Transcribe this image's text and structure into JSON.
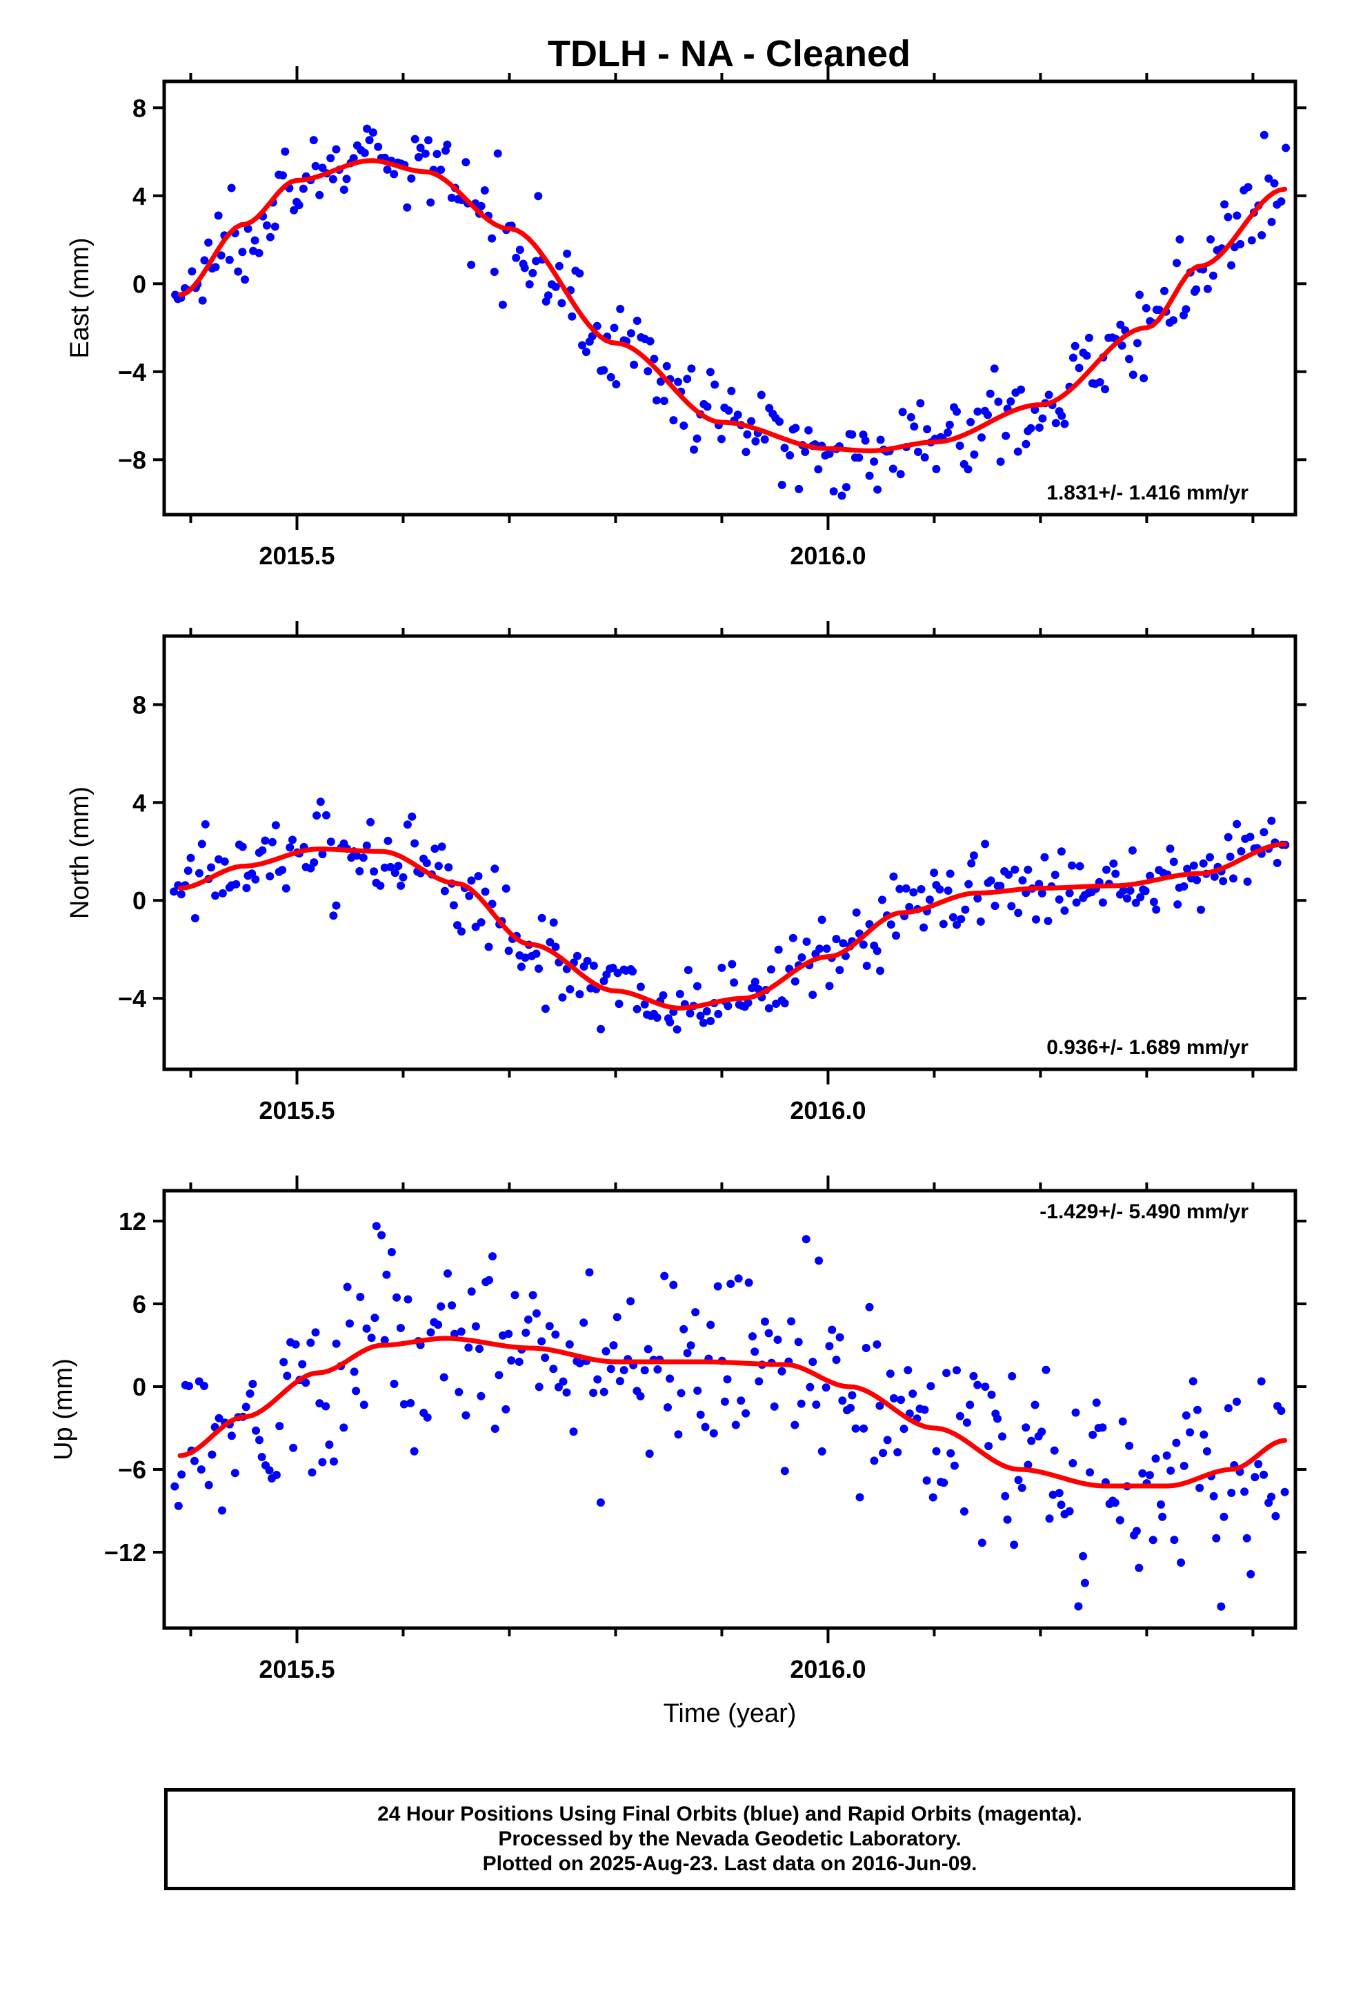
{
  "title": "TDLH  - NA - Cleaned",
  "footer": {
    "line1": "24 Hour Positions Using Final Orbits (blue) and Rapid Orbits (magenta).",
    "line2": "Processed by the Nevada Geodetic Laboratory.",
    "line3": "Plotted on 2025-Aug-23. Last data on 2016-Jun-09."
  },
  "colors": {
    "points": "#0000ff",
    "fit": "#ff0000",
    "frame": "#000000"
  },
  "chart_data": [
    {
      "type": "scatter",
      "ylabel": "East (mm)",
      "xlabel": "",
      "rate": "1.831+/- 1.416 mm/yr",
      "xlim": [
        2015.375,
        2016.44
      ],
      "ylim": [
        -10.5,
        9.2
      ],
      "xticks_major": [
        2015.5,
        2016.0
      ],
      "xtick_labels": [
        "2015.5",
        "2016.0"
      ],
      "xticks_minor": [
        2015.4,
        2015.6,
        2015.7,
        2015.8,
        2015.9,
        2016.1,
        2016.2,
        2016.3,
        2016.4
      ],
      "yticks": [
        -8,
        -4,
        0,
        4,
        8
      ],
      "ytick_labels": [
        "−8",
        "−4",
        "0",
        "4",
        "8"
      ],
      "fit": {
        "x": [
          2015.39,
          2015.45,
          2015.5,
          2015.57,
          2015.62,
          2015.7,
          2015.8,
          2015.9,
          2016.0,
          2016.04,
          2016.1,
          2016.2,
          2016.3,
          2016.35,
          2016.43
        ],
        "y": [
          -0.5,
          2.7,
          4.7,
          5.6,
          5.1,
          2.5,
          -2.7,
          -6.3,
          -7.5,
          -7.6,
          -7.2,
          -5.5,
          -2.0,
          0.8,
          4.3
        ]
      }
    },
    {
      "type": "scatter",
      "ylabel": "North (mm)",
      "xlabel": "",
      "rate": "0.936+/- 1.689 mm/yr",
      "xlim": [
        2015.375,
        2016.44
      ],
      "ylim": [
        -6.9,
        10.8
      ],
      "xticks_major": [
        2015.5,
        2016.0
      ],
      "xtick_labels": [
        "2015.5",
        "2016.0"
      ],
      "xticks_minor": [
        2015.4,
        2015.6,
        2015.7,
        2015.8,
        2015.9,
        2016.1,
        2016.2,
        2016.3,
        2016.4
      ],
      "yticks": [
        -4,
        0,
        4,
        8
      ],
      "ytick_labels": [
        "−4",
        "0",
        "4",
        "8"
      ],
      "fit": {
        "x": [
          2015.39,
          2015.45,
          2015.52,
          2015.58,
          2015.65,
          2015.72,
          2015.8,
          2015.86,
          2015.92,
          2016.0,
          2016.07,
          2016.14,
          2016.2,
          2016.27,
          2016.35,
          2016.43
        ],
        "y": [
          0.5,
          1.4,
          2.1,
          2.0,
          0.7,
          -1.8,
          -3.7,
          -4.4,
          -4.0,
          -2.3,
          -0.5,
          0.3,
          0.5,
          0.6,
          1.1,
          2.3
        ]
      }
    },
    {
      "type": "scatter",
      "ylabel": "Up (mm)",
      "xlabel": "Time (year)",
      "rate": "-1.429+/- 5.490 mm/yr",
      "xlim": [
        2015.375,
        2016.44
      ],
      "ylim": [
        -17.5,
        14.2
      ],
      "xticks_major": [
        2015.5,
        2016.0
      ],
      "xtick_labels": [
        "2015.5",
        "2016.0"
      ],
      "xticks_minor": [
        2015.4,
        2015.6,
        2015.7,
        2015.8,
        2015.9,
        2016.1,
        2016.2,
        2016.3,
        2016.4
      ],
      "yticks": [
        -12,
        -6,
        0,
        6,
        12
      ],
      "ytick_labels": [
        "−12",
        "−6",
        "0",
        "6",
        "12"
      ],
      "fit": {
        "x": [
          2015.39,
          2015.45,
          2015.52,
          2015.58,
          2015.64,
          2015.72,
          2015.8,
          2015.88,
          2015.96,
          2016.02,
          2016.1,
          2016.18,
          2016.26,
          2016.32,
          2016.38,
          2016.43
        ],
        "y": [
          -5.0,
          -2.2,
          1.0,
          3.0,
          3.5,
          2.8,
          1.8,
          1.8,
          1.6,
          0.0,
          -3.0,
          -6.0,
          -7.2,
          -7.2,
          -6.0,
          -3.9
        ]
      }
    }
  ]
}
